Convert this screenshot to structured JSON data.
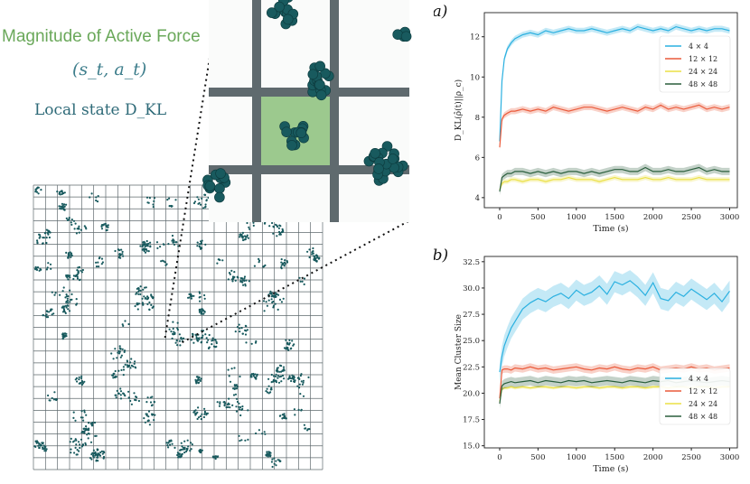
{
  "left_panel": {
    "force_label": "Magnitude of Active Force",
    "state_label": "(s_t, a_t)",
    "dkl_label": "Local state D_KL"
  },
  "colors": {
    "particle": "#185a5e",
    "grid_line": "#5f6a6e",
    "highlight_cell": "#9cc98e",
    "s4": "#2ab0e0",
    "s12": "#ea5a3a",
    "s24": "#ebe045",
    "s48": "#2a5e3c"
  },
  "chart_data": [
    {
      "type": "line",
      "panel_label": "(a)",
      "title": "",
      "xlabel": "Time (s)",
      "ylabel": "D_KL(ρ̂(t)||ρ_c)",
      "xlim": [
        -200,
        3100
      ],
      "ylim": [
        3.5,
        13.2
      ],
      "xticks": [
        "0",
        "500",
        "1000",
        "1500",
        "2000",
        "2500",
        "3000"
      ],
      "yticks": [
        "4",
        "6",
        "8",
        "10",
        "12"
      ],
      "grid": false,
      "legend_position": "center-right",
      "x": [
        0,
        30,
        60,
        100,
        150,
        200,
        300,
        400,
        500,
        600,
        700,
        800,
        900,
        1000,
        1100,
        1200,
        1300,
        1400,
        1500,
        1600,
        1700,
        1800,
        1900,
        2000,
        2100,
        2200,
        2300,
        2400,
        2500,
        2600,
        2700,
        2800,
        2900,
        3000
      ],
      "series": [
        {
          "name": "4 × 4",
          "values": [
            6.8,
            9.8,
            10.9,
            11.4,
            11.7,
            11.9,
            12.1,
            12.2,
            12.1,
            12.3,
            12.2,
            12.3,
            12.4,
            12.3,
            12.3,
            12.4,
            12.3,
            12.2,
            12.3,
            12.4,
            12.3,
            12.5,
            12.4,
            12.3,
            12.4,
            12.3,
            12.5,
            12.4,
            12.3,
            12.4,
            12.3,
            12.4,
            12.4,
            12.3
          ],
          "band": 0.15
        },
        {
          "name": "12 × 12",
          "values": [
            6.5,
            7.9,
            8.1,
            8.2,
            8.3,
            8.3,
            8.4,
            8.3,
            8.4,
            8.3,
            8.5,
            8.4,
            8.3,
            8.4,
            8.5,
            8.5,
            8.4,
            8.3,
            8.4,
            8.5,
            8.4,
            8.3,
            8.5,
            8.4,
            8.6,
            8.4,
            8.5,
            8.4,
            8.5,
            8.6,
            8.4,
            8.5,
            8.4,
            8.5
          ],
          "band": 0.15
        },
        {
          "name": "24 × 24",
          "values": [
            4.4,
            4.7,
            4.8,
            4.8,
            4.9,
            4.9,
            4.8,
            4.9,
            4.9,
            4.8,
            4.9,
            4.9,
            5.0,
            4.9,
            4.9,
            4.9,
            4.8,
            4.9,
            5.0,
            4.9,
            4.9,
            4.9,
            5.0,
            4.9,
            4.9,
            5.0,
            4.9,
            4.9,
            4.9,
            5.0,
            4.9,
            4.9,
            4.9,
            4.9
          ],
          "band": 0.12
        },
        {
          "name": "48 × 48",
          "values": [
            4.3,
            5.0,
            5.1,
            5.2,
            5.2,
            5.3,
            5.3,
            5.2,
            5.3,
            5.2,
            5.3,
            5.2,
            5.3,
            5.3,
            5.2,
            5.3,
            5.2,
            5.3,
            5.4,
            5.4,
            5.3,
            5.3,
            5.5,
            5.3,
            5.3,
            5.4,
            5.3,
            5.3,
            5.4,
            5.5,
            5.3,
            5.4,
            5.3,
            5.3
          ],
          "band": 0.18
        }
      ]
    },
    {
      "type": "line",
      "panel_label": "(b)",
      "title": "",
      "xlabel": "Time (s)",
      "ylabel": "Mean Cluster Size",
      "xlim": [
        -200,
        3100
      ],
      "ylim": [
        14.8,
        33.0
      ],
      "xticks": [
        "0",
        "500",
        "1000",
        "1500",
        "2000",
        "2500",
        "3000"
      ],
      "yticks": [
        "15.0",
        "17.5",
        "20.0",
        "22.5",
        "25.0",
        "27.5",
        "30.0",
        "32.5"
      ],
      "grid": false,
      "legend_position": "lower-right",
      "x": [
        0,
        30,
        60,
        100,
        150,
        200,
        300,
        400,
        500,
        600,
        700,
        800,
        900,
        1000,
        1100,
        1200,
        1300,
        1400,
        1500,
        1600,
        1700,
        1800,
        1900,
        2000,
        2100,
        2200,
        2300,
        2400,
        2500,
        2600,
        2700,
        2800,
        2900,
        3000
      ],
      "series": [
        {
          "name": "4 × 4",
          "values": [
            22.0,
            23.5,
            24.5,
            25.3,
            26.2,
            26.8,
            28.0,
            28.6,
            29.0,
            28.7,
            29.2,
            29.5,
            29.0,
            29.8,
            29.3,
            29.6,
            30.2,
            29.4,
            30.6,
            30.3,
            30.7,
            30.1,
            29.3,
            30.5,
            29.0,
            28.8,
            29.6,
            29.2,
            29.9,
            29.4,
            28.9,
            29.5,
            28.7,
            29.7
          ],
          "band": 1.0
        },
        {
          "name": "12 × 12",
          "values": [
            19.5,
            22.2,
            22.3,
            22.3,
            22.2,
            22.4,
            22.3,
            22.5,
            22.3,
            22.4,
            22.2,
            22.3,
            22.4,
            22.5,
            22.3,
            22.2,
            22.4,
            22.3,
            22.5,
            22.3,
            22.2,
            22.4,
            22.3,
            22.5,
            22.2,
            22.3,
            22.4,
            22.3,
            22.5,
            22.3,
            22.4,
            22.2,
            22.3,
            22.4
          ],
          "band": 0.35
        },
        {
          "name": "24 × 24",
          "values": [
            19.2,
            20.4,
            20.5,
            20.5,
            20.6,
            20.5,
            20.6,
            20.5,
            20.6,
            20.6,
            20.5,
            20.6,
            20.6,
            20.5,
            20.6,
            20.6,
            20.5,
            20.6,
            20.6,
            20.5,
            20.6,
            20.6,
            20.5,
            20.6,
            20.6,
            20.5,
            20.6,
            20.6,
            20.5,
            20.6,
            20.6,
            20.5,
            20.6,
            20.6
          ],
          "band": 0.15
        },
        {
          "name": "48 × 48",
          "values": [
            19.0,
            20.7,
            20.9,
            21.0,
            21.1,
            21.0,
            21.1,
            21.2,
            21.0,
            21.2,
            21.1,
            21.0,
            21.2,
            21.1,
            21.2,
            21.0,
            21.1,
            21.2,
            21.1,
            21.0,
            21.2,
            21.1,
            21.0,
            21.2,
            21.1,
            21.2,
            21.0,
            21.1,
            21.2,
            21.1,
            21.0,
            21.1,
            21.2,
            21.1
          ],
          "band": 0.45
        }
      ]
    }
  ]
}
